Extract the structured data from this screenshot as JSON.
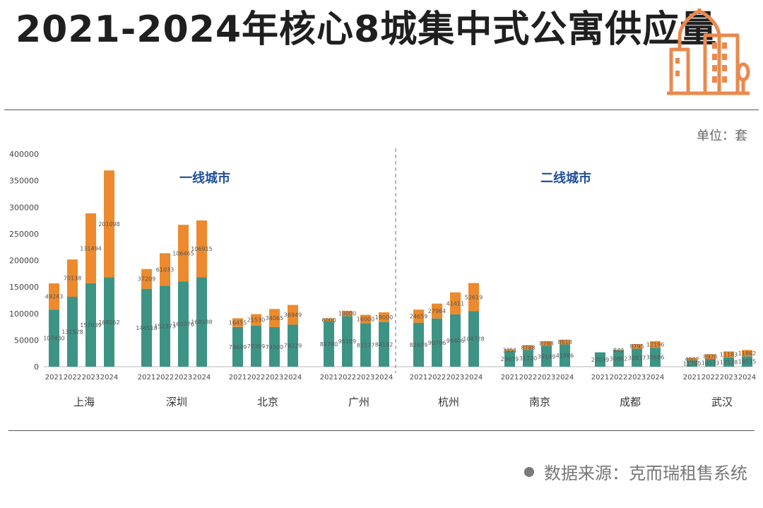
{
  "title": "2021-2024年核心8城集中式公寓供应量",
  "unit_label": "单位：套",
  "source_label": "数据来源：克而瑞租售系统",
  "tier1_label": "一线城市",
  "tier2_label": "二线城市",
  "colors": {
    "base": "#3d9485",
    "increment": "#ec8a2d",
    "tier_label": "#1f4e99",
    "icon": "#e98a4e"
  },
  "icon": "city-buildings-icon",
  "chart_data": {
    "type": "bar",
    "stacked": true,
    "ylim": [
      0,
      400000
    ],
    "yticks": [
      "0",
      "50000",
      "100000",
      "150000",
      "200000",
      "250000",
      "300000",
      "350000",
      "400000"
    ],
    "grid": false,
    "years": [
      "2021",
      "2022",
      "2023",
      "2024"
    ],
    "cities": [
      {
        "name": "上海",
        "base": [
          107430,
          131528,
          157039,
          168062
        ],
        "inc": [
          49243,
          70138,
          131494,
          201098
        ]
      },
      {
        "name": "深圳",
        "base": [
          146518,
          152373,
          160376,
          168188
        ],
        "inc": [
          37209,
          61033,
          106465,
          106915
        ]
      },
      {
        "name": "北京",
        "base": [
          74649,
          77359,
          74500,
          79229
        ],
        "inc": [
          16455,
          21530,
          34065,
          36949
        ]
      },
      {
        "name": "广州",
        "base": [
          84780,
          95109,
          81577,
          84192
        ],
        "inc": [
          6000,
          10000,
          16000,
          18000
        ]
      },
      {
        "name": "杭州",
        "base": [
          82679,
          90766,
          98406,
          104728
        ],
        "inc": [
          24659,
          27964,
          41411,
          52619
        ]
      },
      {
        "name": "南京",
        "base": [
          29679,
          31720,
          39149,
          41886
        ],
        "inc": [
          3351,
          8788,
          8788,
          8918
        ]
      },
      {
        "name": "成都",
        "base": [
          27039,
          30862,
          33817,
          35696
        ],
        "inc": [
          0,
          849,
          8795,
          12196
        ]
      },
      {
        "name": "武汉",
        "base": [
          11740,
          14573,
          17528,
          19535
        ],
        "inc": [
          4902,
          8976,
          11183,
          11862
        ]
      }
    ]
  }
}
